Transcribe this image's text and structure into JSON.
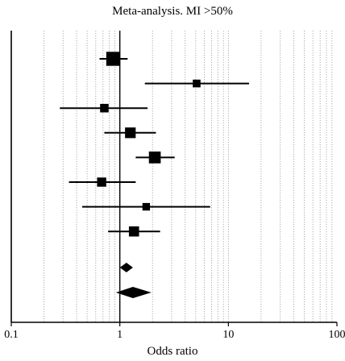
{
  "chart_data": {
    "type": "forest",
    "title": "Meta-analysis. MI >50%",
    "xlabel": "Odds ratio",
    "x_scale": "log",
    "xlim": [
      0.1,
      100
    ],
    "grid": true,
    "xticks": [
      0.1,
      1,
      10,
      100
    ],
    "xtick_labels": [
      "0.1",
      "1",
      "10",
      "100"
    ],
    "reference_line": 1,
    "studies": [
      {
        "or": 0.87,
        "lo": 0.65,
        "hi": 1.18,
        "weight": 0.95
      },
      {
        "or": 5.1,
        "lo": 1.7,
        "hi": 15.5,
        "weight": 0.3
      },
      {
        "or": 0.72,
        "lo": 0.28,
        "hi": 1.8,
        "weight": 0.38
      },
      {
        "or": 1.25,
        "lo": 0.72,
        "hi": 2.15,
        "weight": 0.6
      },
      {
        "or": 2.1,
        "lo": 1.4,
        "hi": 3.2,
        "weight": 0.72
      },
      {
        "or": 0.68,
        "lo": 0.34,
        "hi": 1.4,
        "weight": 0.45
      },
      {
        "or": 1.75,
        "lo": 0.45,
        "hi": 6.8,
        "weight": 0.28
      },
      {
        "or": 1.35,
        "lo": 0.78,
        "hi": 2.35,
        "weight": 0.55
      }
    ],
    "pooled": [
      {
        "or": 1.15,
        "lo": 1.0,
        "hi": 1.32
      },
      {
        "or": 1.32,
        "lo": 0.92,
        "hi": 1.95
      }
    ]
  }
}
